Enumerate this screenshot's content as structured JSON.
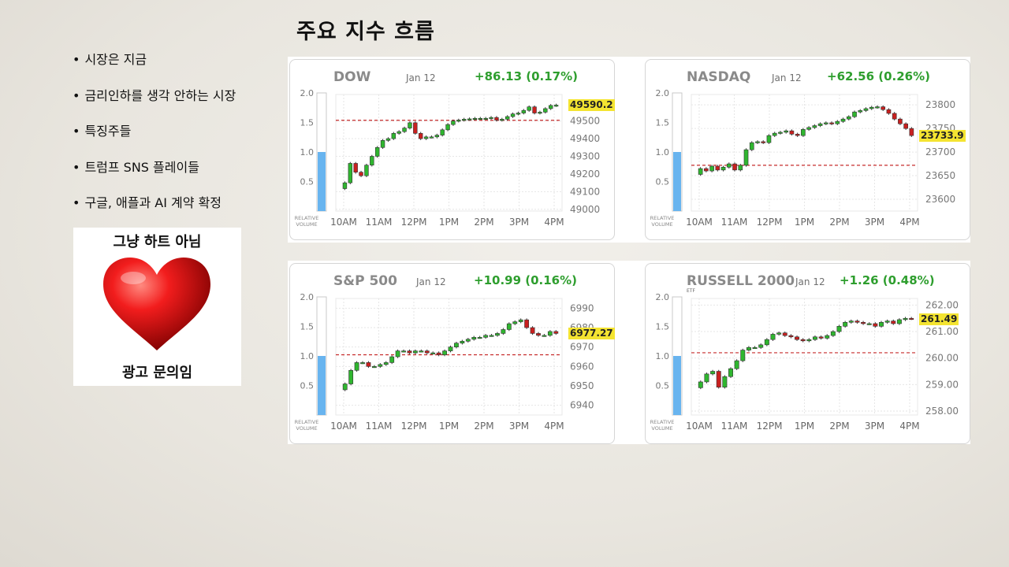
{
  "slide": {
    "title": "주요 지수 흐름",
    "bullets": [
      "시장은 지금",
      "금리인하를 생각 안하는 시장",
      "특징주들",
      "트럼프 SNS 플레이들",
      "구글, 애플과 AI 계약 확정"
    ],
    "ad": {
      "top_text": "그냥 하트 아님",
      "bottom_text": "광고 문의임",
      "heart_icon": "heart-icon"
    }
  },
  "chart_data": [
    {
      "type": "candlestick",
      "title": "DOW",
      "date": "Jan 12",
      "change": "+86.13 (0.17%)",
      "last_label": "49590.2",
      "xlabel": "",
      "ylabel": "",
      "x_ticks": [
        "10AM",
        "11AM",
        "12PM",
        "1PM",
        "2PM",
        "3PM",
        "4PM"
      ],
      "y_ticks": [
        49000,
        49100,
        49200,
        49300,
        49400,
        49500
      ],
      "ylim": [
        48990,
        49650
      ],
      "prev_close": 49504,
      "volume_axis": {
        "ticks": [
          "0.5",
          "1.0",
          "1.5",
          "2.0"
        ],
        "label": [
          "RELATIVE",
          "VOLUME"
        ],
        "value": 1.0,
        "max": 2.0
      },
      "color_up": "#2fb62f",
      "color_down": "#c9201f",
      "close": [
        49150,
        49260,
        49210,
        49190,
        49250,
        49300,
        49350,
        49390,
        49400,
        49430,
        49440,
        49460,
        49490,
        49430,
        49400,
        49410,
        49410,
        49420,
        49450,
        49480,
        49500,
        49505,
        49510,
        49512,
        49515,
        49515,
        49515,
        49520,
        49505,
        49510,
        49525,
        49540,
        49545,
        49560,
        49580,
        49545,
        49550,
        49570,
        49588,
        49590
      ]
    },
    {
      "type": "candlestick",
      "title": "NASDAQ",
      "date": "Jan 12",
      "change": "+62.56 (0.26%)",
      "last_label": "23733.9",
      "xlabel": "",
      "ylabel": "",
      "x_ticks": [
        "10AM",
        "11AM",
        "12PM",
        "1PM",
        "2PM",
        "3PM",
        "4PM"
      ],
      "y_ticks": [
        23600,
        23650,
        23700,
        23750,
        23800
      ],
      "ylim": [
        23575,
        23822
      ],
      "prev_close": 23672,
      "volume_axis": {
        "ticks": [
          "0.5",
          "1.0",
          "1.5",
          "2.0"
        ],
        "label": [
          "RELATIVE",
          "VOLUME"
        ],
        "value": 1.0,
        "max": 2.0
      },
      "color_up": "#2fb62f",
      "color_down": "#c9201f",
      "close": [
        23665,
        23660,
        23670,
        23662,
        23668,
        23675,
        23662,
        23672,
        23705,
        23720,
        23722,
        23720,
        23735,
        23740,
        23742,
        23745,
        23738,
        23735,
        23748,
        23752,
        23756,
        23760,
        23762,
        23760,
        23765,
        23770,
        23775,
        23785,
        23788,
        23792,
        23795,
        23796,
        23790,
        23782,
        23770,
        23760,
        23750,
        23735
      ]
    },
    {
      "type": "candlestick",
      "title": "S&P 500",
      "date": "Jan 12",
      "change": "+10.99 (0.16%)",
      "last_label": "6977.27",
      "xlabel": "",
      "ylabel": "",
      "x_ticks": [
        "10AM",
        "11AM",
        "12PM",
        "1PM",
        "2PM",
        "3PM",
        "4PM"
      ],
      "y_ticks": [
        6940,
        6950,
        6960,
        6970,
        6980,
        6990
      ],
      "ylim": [
        6935,
        6995
      ],
      "prev_close": 6966,
      "volume_axis": {
        "ticks": [
          "0.5",
          "1.0",
          "1.5",
          "2.0"
        ],
        "label": [
          "RELATIVE",
          "VOLUME"
        ],
        "value": 1.0,
        "max": 2.0
      },
      "color_up": "#2fb62f",
      "color_down": "#c9201f",
      "close": [
        6951,
        6958,
        6962,
        6962,
        6960,
        6960,
        6961,
        6962,
        6965,
        6968,
        6968,
        6967,
        6968,
        6968,
        6967,
        6967,
        6966,
        6968,
        6970,
        6972,
        6973,
        6974,
        6975,
        6975,
        6976,
        6976,
        6977,
        6979,
        6982,
        6983,
        6984,
        6980,
        6977,
        6976,
        6976,
        6978,
        6977
      ]
    },
    {
      "type": "candlestick",
      "title": "RUSSELL 2000",
      "subtitle": "ETF",
      "date": "Jan 12",
      "change": "+1.26 (0.48%)",
      "last_label": "261.49",
      "xlabel": "",
      "ylabel": "",
      "x_ticks": [
        "10AM",
        "11AM",
        "12PM",
        "1PM",
        "2PM",
        "3PM",
        "4PM"
      ],
      "y_ticks": [
        258.0,
        259.0,
        260.0,
        261.0,
        262.0
      ],
      "ylim": [
        257.85,
        262.25
      ],
      "prev_close": 260.2,
      "volume_axis": {
        "ticks": [
          "0.5",
          "1.0",
          "1.5",
          "2.0"
        ],
        "label": [
          "RELATIVE",
          "VOLUME"
        ],
        "value": 1.0,
        "max": 2.0
      },
      "color_up": "#2fb62f",
      "color_down": "#c9201f",
      "close": [
        259.1,
        259.4,
        259.5,
        258.9,
        259.3,
        259.6,
        259.9,
        260.3,
        260.4,
        260.4,
        260.5,
        260.7,
        260.9,
        260.95,
        260.85,
        260.8,
        260.7,
        260.65,
        260.7,
        260.8,
        260.75,
        260.85,
        261.0,
        261.2,
        261.35,
        261.4,
        261.35,
        261.3,
        261.3,
        261.2,
        261.35,
        261.4,
        261.3,
        261.45,
        261.5,
        261.49
      ]
    }
  ]
}
